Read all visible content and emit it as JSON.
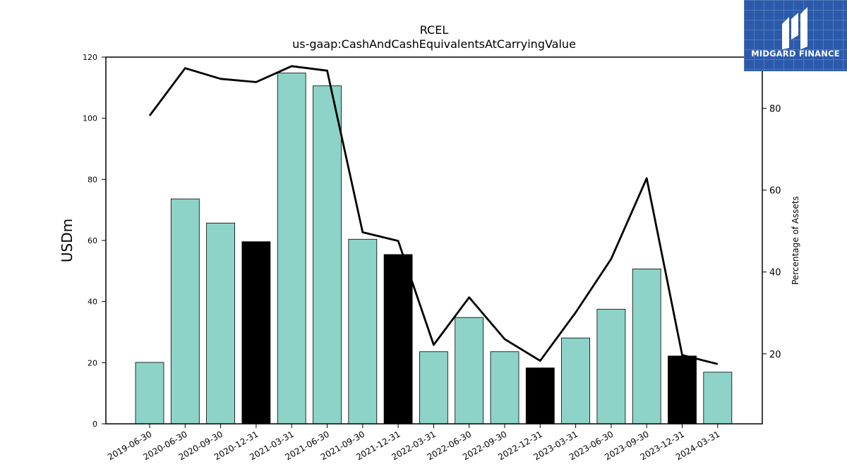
{
  "chart_data": {
    "type": "bar",
    "title": "RCEL",
    "subtitle": "us-gaap:CashAndCashEquivalentsAtCarryingValue",
    "ylabel": "USDm",
    "ylabel_right": "Percentage of Assets",
    "ylim": [
      0,
      120
    ],
    "ylim_right": [
      2.9,
      92.5
    ],
    "yticks": [
      0,
      20,
      40,
      60,
      80,
      100,
      120
    ],
    "yticks_right": [
      20,
      40,
      60,
      80
    ],
    "categories": [
      "2019-06-30",
      "2020-06-30",
      "2020-09-30",
      "2020-12-31",
      "2021-03-31",
      "2021-06-30",
      "2021-09-30",
      "2021-12-31",
      "2022-03-31",
      "2022-06-30",
      "2022-09-30",
      "2022-12-31",
      "2023-03-31",
      "2023-06-30",
      "2023-09-30",
      "2023-12-31",
      "2024-03-31"
    ],
    "series": [
      {
        "type": "bar",
        "axis": "left",
        "values": [
          20.1,
          73.6,
          65.7,
          59.6,
          114.8,
          110.6,
          60.4,
          55.4,
          23.6,
          34.8,
          23.6,
          18.3,
          28.1,
          37.5,
          50.7,
          22.2,
          16.9
        ],
        "colors": [
          "#8dd3c7",
          "#8dd3c7",
          "#8dd3c7",
          "#000000",
          "#8dd3c7",
          "#8dd3c7",
          "#8dd3c7",
          "#000000",
          "#8dd3c7",
          "#8dd3c7",
          "#8dd3c7",
          "#000000",
          "#8dd3c7",
          "#8dd3c7",
          "#8dd3c7",
          "#000000",
          "#8dd3c7"
        ]
      },
      {
        "type": "line",
        "axis": "right",
        "color": "#000000",
        "values": [
          78.2,
          89.8,
          87.2,
          86.4,
          90.3,
          89.2,
          49.7,
          47.6,
          22.2,
          33.8,
          23.6,
          18.3,
          30.1,
          43.2,
          62.9,
          19.7,
          17.5
        ]
      }
    ],
    "grid": false,
    "legend": "none"
  },
  "logo": {
    "text": "MIDGARD FINANCE",
    "icon": "midgard-m-logo-icon",
    "background": "#2b5aab"
  }
}
